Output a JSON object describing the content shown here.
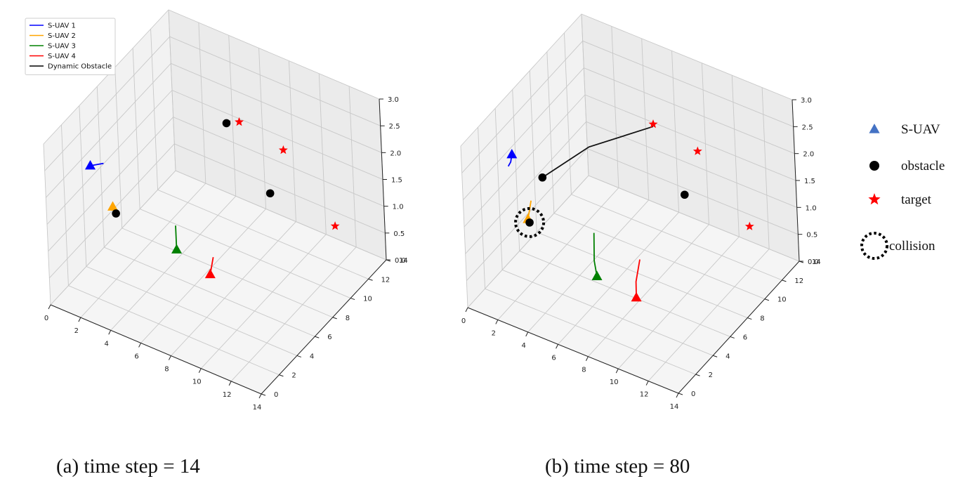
{
  "chart_data": [
    {
      "type": "scatter",
      "projection": "3d",
      "caption": "(a) time step = 14",
      "xlim": [
        0,
        14
      ],
      "ylim": [
        0,
        14
      ],
      "zlim": [
        0,
        3
      ],
      "xticks": [
        "0",
        "2",
        "4",
        "6",
        "8",
        "10",
        "12",
        "14"
      ],
      "yticks": [
        "0",
        "2",
        "4",
        "6",
        "8",
        "10",
        "12",
        "14"
      ],
      "zticks": [
        "0.0",
        "0.5",
        "1.0",
        "1.5",
        "2.0",
        "2.5",
        "3.0"
      ],
      "grid": true,
      "legend": {
        "placement": "top-left",
        "entries": [
          {
            "name": "S-UAV 1",
            "color": "#0000ff"
          },
          {
            "name": "S-UAV 2",
            "color": "#ffa500"
          },
          {
            "name": "S-UAV 3",
            "color": "#008000"
          },
          {
            "name": "S-UAV 4",
            "color": "#ff0000"
          },
          {
            "name": "Dynamic Obstacle",
            "color": "#000000"
          }
        ]
      },
      "uavs": [
        {
          "name": "S-UAV 1",
          "color": "#0000ff",
          "pos": [
            1.2,
            3.0,
            2.2
          ],
          "trail": [
            [
              1.6,
              3.8,
              2.15
            ],
            [
              1.2,
              3.0,
              2.2
            ]
          ]
        },
        {
          "name": "S-UAV 2",
          "color": "#ffa500",
          "pos": [
            2.6,
            3.0,
            1.6
          ],
          "trail": [
            [
              2.6,
              3.0,
              1.65
            ],
            [
              2.6,
              3.0,
              1.6
            ]
          ]
        },
        {
          "name": "S-UAV 3",
          "color": "#008000",
          "pos": [
            6.8,
            3.0,
            1.3
          ],
          "trail": [
            [
              6.8,
              3.0,
              1.75
            ],
            [
              6.8,
              3.0,
              1.3
            ]
          ]
        },
        {
          "name": "S-UAV 4",
          "color": "#ff0000",
          "pos": [
            9.0,
            3.0,
            1.1
          ],
          "trail": [
            [
              9.0,
              3.4,
              1.35
            ],
            [
              9.0,
              3.0,
              1.1
            ]
          ]
        }
      ],
      "obstacles": [
        {
          "pos": [
            2.8,
            3.0,
            1.5
          ],
          "trail": [
            [
              2.8,
              3.0,
              1.5
            ]
          ]
        },
        {
          "pos": [
            5.8,
            10.5,
            2.2
          ],
          "trail": [
            [
              6.0,
              10.6,
              2.25
            ],
            [
              5.8,
              10.5,
              2.2
            ]
          ]
        },
        {
          "pos": [
            9.5,
            9.0,
            1.6
          ],
          "trail": [
            [
              9.5,
              9.0,
              1.6
            ]
          ]
        }
      ],
      "targets": [
        [
          6.6,
          10.6,
          2.3
        ],
        [
          10.2,
          9.5,
          2.4
        ],
        [
          13.8,
          9.0,
          1.5
        ]
      ],
      "collisions": []
    },
    {
      "type": "scatter",
      "projection": "3d",
      "caption": "(b) time step = 80",
      "xlim": [
        0,
        14
      ],
      "ylim": [
        0,
        14
      ],
      "zlim": [
        0,
        3
      ],
      "xticks": [
        "0",
        "2",
        "4",
        "6",
        "8",
        "10",
        "12",
        "14"
      ],
      "yticks": [
        "0",
        "2",
        "4",
        "6",
        "8",
        "10",
        "12",
        "14"
      ],
      "zticks": [
        "0.0",
        "0.5",
        "1.0",
        "1.5",
        "2.0",
        "2.5",
        "3.0"
      ],
      "grid": true,
      "uavs": [
        {
          "name": "S-UAV 1",
          "color": "#0000ff",
          "pos": [
            1.6,
            3.0,
            2.5
          ],
          "trail": [
            [
              1.2,
              3.2,
              2.2
            ],
            [
              1.5,
              3.0,
              2.35
            ],
            [
              1.6,
              3.0,
              2.5
            ]
          ]
        },
        {
          "name": "S-UAV 2",
          "color": "#ffa500",
          "pos": [
            2.5,
            3.0,
            1.4
          ],
          "trail": [
            [
              2.7,
              3.1,
              1.75
            ],
            [
              2.5,
              3.0,
              1.4
            ]
          ]
        },
        {
          "name": "S-UAV 3",
          "color": "#008000",
          "pos": [
            7.0,
            3.0,
            0.85
          ],
          "trail": [
            [
              6.8,
              3.2,
              1.6
            ],
            [
              6.8,
              3.1,
              1.1
            ],
            [
              7.0,
              3.0,
              0.85
            ]
          ]
        },
        {
          "name": "S-UAV 4",
          "color": "#ff0000",
          "pos": [
            9.6,
            3.0,
            0.75
          ],
          "trail": [
            [
              9.7,
              3.4,
              1.4
            ],
            [
              9.5,
              3.2,
              1.0
            ],
            [
              9.6,
              3.0,
              0.75
            ]
          ]
        }
      ],
      "obstacles": [
        {
          "pos": [
            3.6,
            3.0,
            2.3
          ],
          "trail": [
            [
              7.2,
              9.6,
              2.5
            ],
            [
              5.0,
              6.0,
              2.5
            ],
            [
              3.6,
              3.0,
              2.3
            ]
          ]
        },
        {
          "pos": [
            2.6,
            3.0,
            1.35
          ],
          "trail": [
            [
              2.6,
              3.0,
              1.35
            ]
          ]
        },
        {
          "pos": [
            9.5,
            9.0,
            1.6
          ],
          "trail": [
            [
              9.5,
              9.0,
              1.6
            ]
          ]
        }
      ],
      "targets": [
        [
          6.6,
          10.6,
          2.3
        ],
        [
          10.2,
          9.5,
          2.4
        ],
        [
          13.8,
          9.0,
          1.5
        ]
      ],
      "collisions": [
        [
          2.6,
          3.0,
          1.35
        ]
      ]
    }
  ],
  "marker_legend": {
    "entries": [
      {
        "label": "S-UAV",
        "marker": "triangle",
        "color": "#4472c4"
      },
      {
        "label": "obstacle",
        "marker": "circle",
        "color": "#000000"
      },
      {
        "label": "target",
        "marker": "star",
        "color": "#ff0000"
      },
      {
        "label": "collision",
        "marker": "dotted-circle",
        "color": "#000000"
      }
    ]
  }
}
